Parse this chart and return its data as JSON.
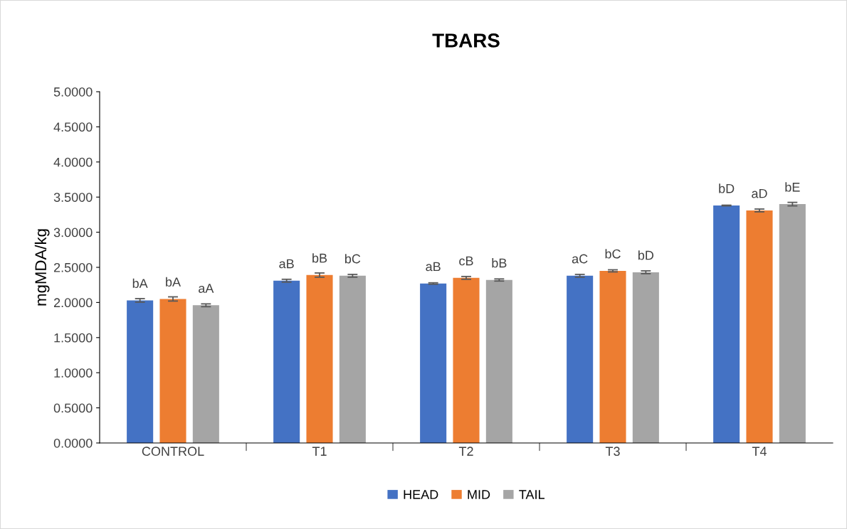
{
  "chart_data": {
    "type": "bar",
    "title": "TBARS",
    "ylabel": "mgMDA/kg",
    "categories": [
      "CONTROL",
      "T1",
      "T2",
      "T3",
      "T4"
    ],
    "series": [
      {
        "name": "HEAD",
        "color": "#4472c4",
        "values": [
          2.03,
          2.31,
          2.27,
          2.38,
          3.38
        ],
        "errors": [
          0.025,
          0.02,
          0.01,
          0.02,
          0.005
        ],
        "value_labels": [
          "bA",
          "aB",
          "aB",
          "aC",
          "bD"
        ]
      },
      {
        "name": "MID",
        "color": "#ed7d31",
        "values": [
          2.05,
          2.39,
          2.35,
          2.45,
          3.31
        ],
        "errors": [
          0.03,
          0.03,
          0.02,
          0.015,
          0.02
        ],
        "value_labels": [
          "bA",
          "bB",
          "cB",
          "bC",
          "aD"
        ]
      },
      {
        "name": "TAIL",
        "color": "#a5a5a5",
        "values": [
          1.96,
          2.38,
          2.32,
          2.43,
          3.4
        ],
        "errors": [
          0.02,
          0.02,
          0.015,
          0.02,
          0.025
        ],
        "value_labels": [
          "aA",
          "bC",
          "bB",
          "bD",
          "bE"
        ]
      }
    ],
    "ylim": [
      0,
      5
    ],
    "yticks": [
      {
        "value": 0,
        "label": "0.0000"
      },
      {
        "value": 0.5,
        "label": "0.5000"
      },
      {
        "value": 1,
        "label": "1.0000"
      },
      {
        "value": 1.5,
        "label": "1.5000"
      },
      {
        "value": 2,
        "label": "2.0000"
      },
      {
        "value": 2.5,
        "label": "2.5000"
      },
      {
        "value": 3,
        "label": "3.0000"
      },
      {
        "value": 3.5,
        "label": "3.5000"
      },
      {
        "value": 4,
        "label": "4.0000"
      },
      {
        "value": 4.5,
        "label": "4.5000"
      },
      {
        "value": 5,
        "label": "5.0000"
      }
    ],
    "grid": false,
    "legend": "bottom"
  }
}
